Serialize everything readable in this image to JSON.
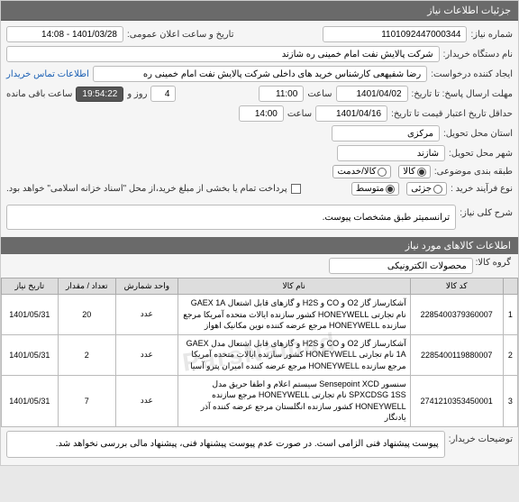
{
  "header": {
    "title": "جزئیات اطلاعات نیاز"
  },
  "form": {
    "need_no_label": "شماره نیاز:",
    "need_no": "1101092447000344",
    "announce_label": "تاریخ و ساعت اعلان عمومی:",
    "announce_value": "1401/03/28 - 14:08",
    "buyer_label": "نام دستگاه خریدار:",
    "buyer_value": "شرکت پالایش نفت امام خمینی ره شازند",
    "requester_label": "ایجاد کننده درخواست:",
    "requester_value": "رضا شفیهعی کارشناس خرید های داخلی شرکت پالایش نفت امام خمینی ره",
    "contact_link": "اطلاعات تماس خریدار",
    "deadline_label": "مهلت ارسال پاسخ: تا تاریخ:",
    "deadline_date": "1401/04/02",
    "time_label": "ساعت",
    "deadline_time": "11:00",
    "days_num": "4",
    "days_label": "روز و",
    "countdown": "19:54:22",
    "remain_label": "ساعت باقی مانده",
    "validity_label": "حداقل تاریخ اعتبار قیمت تا تاریخ:",
    "validity_date": "1401/04/16",
    "validity_time": "14:00",
    "province_label": "استان محل تحویل:",
    "province_value": "مرکزی",
    "city_label": "شهر محل تحویل:",
    "city_value": "شازند",
    "class_label": "طبقه بندی موضوعی:",
    "class_opts": {
      "kala": "کالا",
      "khadmat": "کالا/خدمت",
      "sel": 0
    },
    "process_label": "نوع فرآیند خرید :",
    "process_opts": {
      "a": "جزئی",
      "b": "متوسط",
      "c": "",
      "sel": 1
    },
    "pay_note_chk_label": "",
    "pay_note": "پرداخت تمام یا بخشی از مبلغ خرید،از محل \"اسناد خزانه اسلامی\" خواهد بود."
  },
  "desc": {
    "label": "شرح کلی نیاز:",
    "value": "ترانسمیتر طبق مشخصات پیوست."
  },
  "goods_header": "اطلاعات کالاهای مورد نیاز",
  "goods_group": {
    "label": "گروه کالا:",
    "value": "محصولات الکترونیکی"
  },
  "table": {
    "cols": [
      "",
      "کد کالا",
      "نام کالا",
      "واحد شمارش",
      "تعداد / مقدار",
      "تاریخ نیاز"
    ],
    "rows": [
      {
        "n": "1",
        "code": "2285400379360007",
        "name": "آشکارساز گاز O2 و CO و H2S و گازهای قابل اشتعال GAEX 1A نام تجارتی HONEYWELL کشور سازنده ایالات متحده آمریکا مرجع سازنده HONEYWELL مرجع عرضه کننده نوین مکانیک اهواز",
        "unit": "عدد",
        "qty": "20",
        "date": "1401/05/31"
      },
      {
        "n": "2",
        "code": "2285400119880007",
        "name": "آشکارساز گاز O2 و CO و H2S و گازهای قابل اشتعال مدل GAEX 1A نام تجارتی HONEYWELL کشور سازنده ایالات متحده آمریکا مرجع سازنده HONEYWELL مرجع عرضه کننده امیران پترو آسیا",
        "unit": "عدد",
        "qty": "2",
        "date": "1401/05/31"
      },
      {
        "n": "3",
        "code": "2741210353450001",
        "name": "سنسور Sensepoint XCD سیستم اعلام و اطفا حریق مدل SPXCDSG 1SS نام تجارتی HONEYWELL مرجع سازنده HONEYWELL کشور سازنده انگلستان مرجع عرضه کننده آذر یادنگار",
        "unit": "عدد",
        "qty": "7",
        "date": "1401/05/31"
      }
    ]
  },
  "watermark": "ParsNamad",
  "footer": {
    "label": "توضیحات خریدار:",
    "text": "پیوست پیشنهاد فنی الزامی است. در صورت عدم پیوست پیشنهاد فنی، پیشنهاد مالی بررسی نخواهد شد."
  },
  "colors": {
    "header_bg": "#6a6a6a",
    "link": "#1a5fb4",
    "countdown_bg": "#555555"
  }
}
